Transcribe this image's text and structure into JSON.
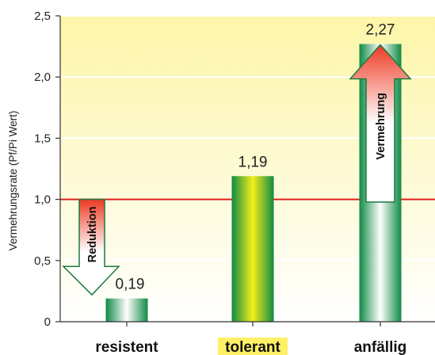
{
  "chart_data": {
    "type": "bar",
    "title": "",
    "xlabel": "",
    "ylabel": "Vermehrungsrate (Pf/Pi Wert)",
    "categories": [
      "resistent",
      "tolerant",
      "anfällig"
    ],
    "values": [
      0.19,
      1.19,
      2.27
    ],
    "value_labels": [
      "0,19",
      "1,19",
      "2,27"
    ],
    "ylim": [
      0,
      2.5
    ],
    "yticks": [
      0,
      0.5,
      1.0,
      1.5,
      2.0,
      2.5
    ],
    "ytick_labels": [
      "0",
      "0,5",
      "1,0",
      "1,5",
      "2,0",
      "2,5"
    ],
    "reference_line": {
      "value": 1.0,
      "color": "#e0201b"
    },
    "highlighted_category": "tolerant",
    "highlight_color": "#fff066",
    "annotations": [
      {
        "text": "Reduktion",
        "direction": "down",
        "from": 1.0,
        "to": 0.4,
        "near_category": "resistent"
      },
      {
        "text": "Vermehrung",
        "direction": "up",
        "from": 1.0,
        "to": 2.27,
        "near_category": "anfällig"
      }
    ],
    "bar_colors": {
      "resistent": [
        "#0f8a45",
        "#ffffff"
      ],
      "tolerant": [
        "#0f8a45",
        "#f4ef1a"
      ],
      "anfällig": [
        "#0f8a45",
        "#ffffff"
      ]
    },
    "background_gradient": [
      "#ffffff",
      "#fdf5a8"
    ],
    "grid": true
  }
}
